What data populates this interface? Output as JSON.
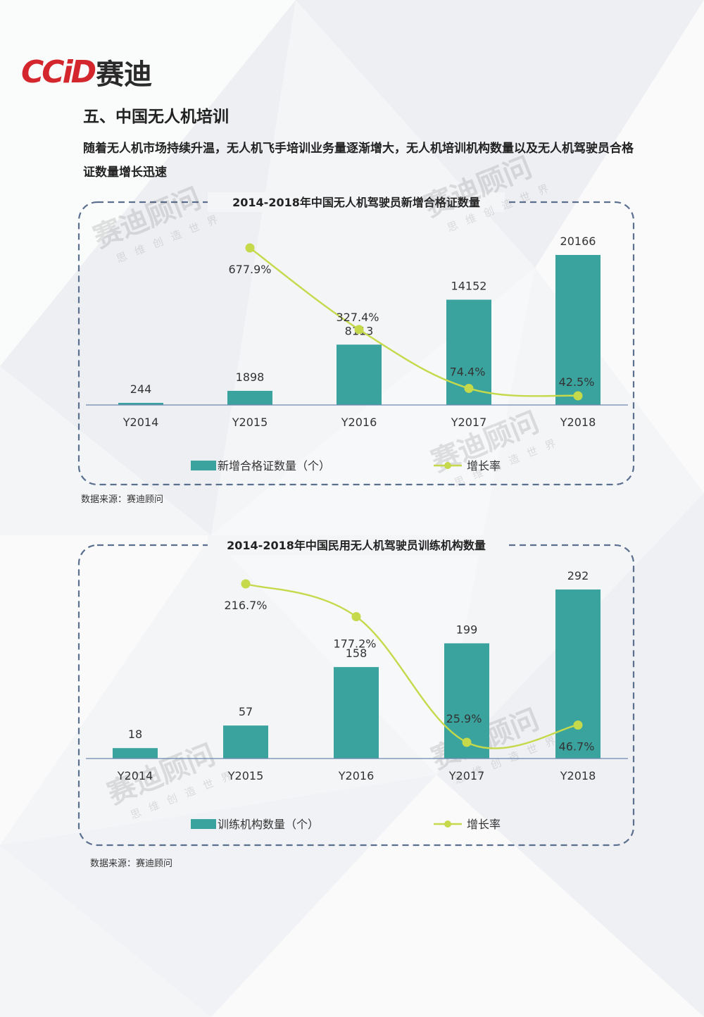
{
  "header": {
    "logo_latin": "CCiD",
    "logo_cn": "赛迪",
    "section_title": "五、中国无人机培训",
    "intro": "随着无人机市场持续升温，无人机飞手培训业务量逐渐增大，无人机培训机构数量以及无人机驾驶员合格证数量增长迅速"
  },
  "watermark": {
    "main": "赛迪顾问",
    "sub": "思 维 创 造 世 界"
  },
  "colors": {
    "bar": "#3aa39e",
    "line": "#c5d94a",
    "border": "#5b6f8f",
    "axis": "#6d87b0"
  },
  "chart_data": [
    {
      "type": "bar",
      "title": "2014-2018年中国无人机驾驶员新增合格证数量",
      "categories": [
        "Y2014",
        "Y2015",
        "Y2016",
        "Y2017",
        "Y2018"
      ],
      "values": [
        244,
        1898,
        8113,
        14152,
        20166
      ],
      "value_labels": [
        "244",
        "1898",
        "8113",
        "14152",
        "20166"
      ],
      "bar_series_name": "新增合格证数量（个）",
      "line_series_name": "增长率",
      "growth_rate": [
        null,
        677.9,
        327.4,
        74.4,
        42.5
      ],
      "growth_labels": [
        "",
        "677.9%",
        "327.4%",
        "74.4%",
        "42.5%"
      ],
      "legend_position": "bottom",
      "source": "数据来源：赛迪顾问"
    },
    {
      "type": "bar",
      "title": "2014-2018年中国民用无人机驾驶员训练机构数量",
      "categories": [
        "Y2014",
        "Y2015",
        "Y2016",
        "Y2017",
        "Y2018"
      ],
      "values": [
        18,
        57,
        158,
        199,
        292
      ],
      "value_labels": [
        "18",
        "57",
        "158",
        "199",
        "292"
      ],
      "bar_series_name": "训练机构数量（个）",
      "line_series_name": "增长率",
      "growth_rate": [
        null,
        216.7,
        177.2,
        25.9,
        46.7
      ],
      "growth_labels": [
        "",
        "216.7%",
        "177.2%",
        "25.9%",
        "46.7%"
      ],
      "legend_position": "bottom",
      "source": "数据来源：赛迪顾问"
    }
  ]
}
